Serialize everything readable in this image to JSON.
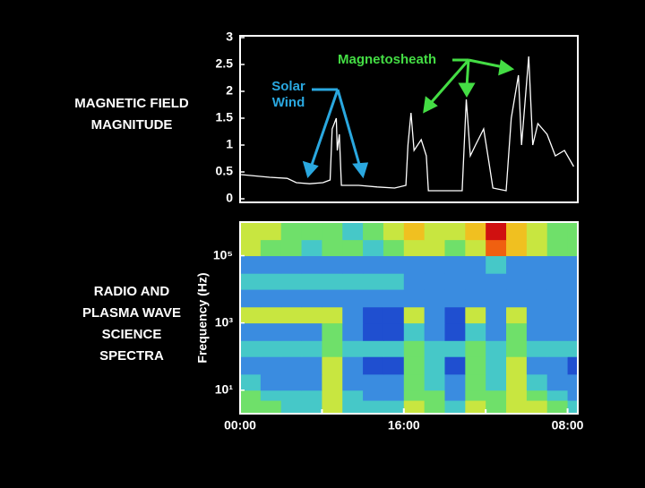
{
  "chart_data": [
    {
      "type": "line",
      "label": [
        "MAGNETIC FIELD",
        "MAGNITUDE"
      ],
      "x": [
        0.1,
        2.9,
        4.6,
        5.5,
        6.8,
        8.1,
        8.8,
        9.0,
        9.4,
        9.5,
        9.7,
        9.9,
        11.6,
        13.4,
        15.1,
        16.2,
        16.4,
        16.7,
        17.0,
        17.7,
        18.2,
        18.4,
        21.7,
        21.9,
        22.1,
        22.5,
        23.0,
        23.8,
        24.3,
        24.7,
        26.0,
        26.5,
        27.2,
        27.5,
        28.2,
        28.6,
        29.1,
        30.0,
        30.8,
        31.7,
        32.6
      ],
      "series": [
        {
          "color": "#ffffff",
          "values": [
            0.45,
            0.4,
            0.38,
            0.3,
            0.28,
            0.3,
            0.35,
            1.3,
            1.5,
            0.9,
            1.2,
            0.25,
            0.25,
            0.22,
            0.2,
            0.25,
            1.0,
            1.6,
            0.9,
            1.1,
            0.8,
            0.15,
            0.15,
            1.0,
            1.85,
            0.8,
            1.0,
            1.3,
            0.7,
            0.2,
            0.15,
            1.5,
            2.3,
            1.0,
            2.65,
            1.0,
            1.4,
            1.2,
            0.8,
            0.9,
            0.6
          ]
        }
      ],
      "xlim": [
        0,
        33
      ],
      "ylim": [
        0,
        3
      ],
      "yticks": [
        0,
        0.5,
        1,
        1.5,
        2,
        2.5,
        3
      ],
      "annotations": [
        {
          "lines": [
            "Solar",
            "Wind"
          ],
          "color": "#2aa8e0"
        },
        {
          "lines": [
            "Magnetosheath"
          ],
          "color": "#44dd44"
        }
      ]
    },
    {
      "type": "heatmap",
      "label": [
        "RADIO AND",
        "PLASMA WAVE",
        "SCIENCE",
        "SPECTRA"
      ],
      "y_label": "Frequency (Hz)",
      "log_y": true,
      "xlim": [
        0,
        33
      ],
      "ylim": [
        2,
        1000000
      ],
      "xticks": [
        {
          "value": 0,
          "label": "00:00"
        },
        {
          "value": 16,
          "label": "16:00"
        },
        {
          "value": 32,
          "label": "08:00"
        }
      ],
      "minor_xticks": [
        8,
        24
      ],
      "yticks": [
        {
          "value": 100000,
          "label": "10⁵"
        },
        {
          "value": 1000,
          "label": "10³"
        },
        {
          "value": 10,
          "label": "10¹"
        }
      ],
      "x_bins": [
        0,
        2,
        4,
        6,
        8,
        10,
        12,
        14,
        16,
        18,
        20,
        22,
        24,
        26,
        28,
        30,
        32,
        33
      ],
      "y_bins": [
        2,
        5,
        10,
        30,
        100,
        300,
        1000,
        3000,
        10000,
        30000,
        100000,
        300000,
        1000000
      ],
      "zlim": [
        0,
        9
      ],
      "colorscale": [
        "#00005a",
        "#0a1e9a",
        "#1f4fd0",
        "#3a8ce0",
        "#46c8c8",
        "#6fe06a",
        "#c8e640",
        "#f0c020",
        "#f06010",
        "#d01010"
      ],
      "z": [
        [
          5,
          5,
          4,
          4,
          6,
          4,
          4,
          4,
          6,
          5,
          4,
          6,
          5,
          6,
          6,
          5,
          4
        ],
        [
          5,
          4,
          4,
          4,
          6,
          4,
          3,
          3,
          5,
          5,
          3,
          5,
          5,
          6,
          5,
          4,
          3
        ],
        [
          4,
          3,
          3,
          3,
          6,
          3,
          3,
          3,
          5,
          4,
          3,
          5,
          4,
          6,
          4,
          3,
          3
        ],
        [
          3,
          3,
          3,
          3,
          6,
          3,
          2,
          2,
          5,
          4,
          2,
          5,
          4,
          6,
          3,
          3,
          2
        ],
        [
          4,
          4,
          4,
          4,
          5,
          4,
          4,
          4,
          5,
          4,
          4,
          5,
          4,
          5,
          4,
          4,
          4
        ],
        [
          3,
          3,
          3,
          3,
          5,
          3,
          2,
          2,
          4,
          3,
          2,
          4,
          3,
          5,
          3,
          3,
          3
        ],
        [
          6,
          6,
          6,
          6,
          6,
          3,
          2,
          2,
          6,
          3,
          2,
          6,
          3,
          6,
          3,
          3,
          3
        ],
        [
          3,
          3,
          3,
          3,
          3,
          3,
          3,
          3,
          3,
          3,
          3,
          3,
          3,
          3,
          3,
          3,
          3
        ],
        [
          4,
          4,
          4,
          4,
          4,
          4,
          4,
          4,
          3,
          3,
          3,
          3,
          3,
          3,
          3,
          3,
          3
        ],
        [
          3,
          3,
          3,
          3,
          3,
          3,
          3,
          3,
          3,
          3,
          3,
          3,
          4,
          3,
          3,
          3,
          3
        ],
        [
          6,
          5,
          5,
          4,
          5,
          5,
          4,
          5,
          6,
          6,
          5,
          6,
          8,
          7,
          6,
          5,
          5
        ],
        [
          6,
          6,
          5,
          5,
          5,
          4,
          5,
          6,
          7,
          6,
          6,
          7,
          9,
          7,
          6,
          5,
          5
        ]
      ]
    }
  ]
}
